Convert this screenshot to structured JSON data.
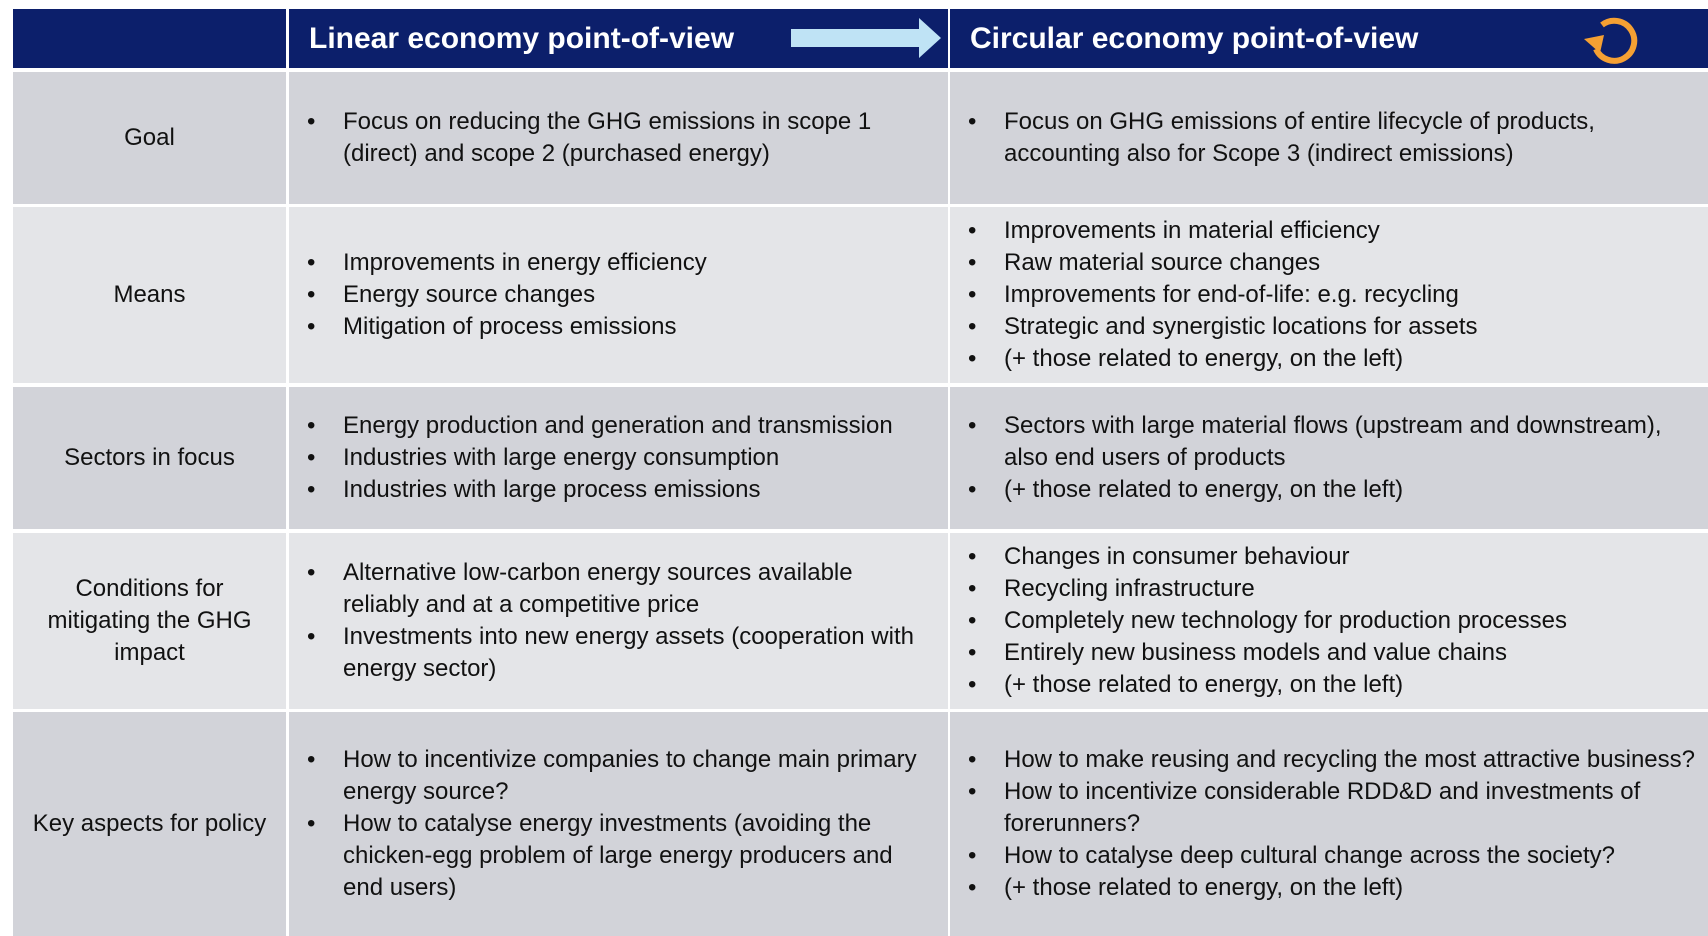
{
  "header": {
    "columns": [
      "Linear economy point-of-view",
      "Circular economy point-of-view"
    ]
  },
  "rows": [
    {
      "label": "Goal",
      "linear": [
        "Focus on reducing the GHG emissions in scope 1 (direct) and scope 2 (purchased energy)"
      ],
      "circular": [
        "Focus on GHG emissions of entire lifecycle of products, accounting also for Scope 3 (indirect emissions)"
      ]
    },
    {
      "label": "Means",
      "linear": [
        "Improvements in energy efficiency",
        "Energy source changes",
        "Mitigation of process emissions"
      ],
      "circular": [
        "Improvements in material efficiency",
        "Raw material source changes",
        "Improvements for end-of-life: e.g. recycling",
        "Strategic and synergistic locations for assets",
        "(+ those related to energy, on the left)"
      ]
    },
    {
      "label": "Sectors in focus",
      "linear": [
        "Energy production and generation and transmission",
        "Industries with large energy consumption",
        "Industries with large process emissions"
      ],
      "circular": [
        "Sectors with large material flows (upstream and downstream), also end users of products",
        "(+ those related to energy, on the left)"
      ]
    },
    {
      "label": "Conditions for mitigating the GHG impact",
      "linear": [
        "Alternative low-carbon energy sources available reliably and at a competitive price",
        "Investments into new energy assets (cooperation with energy sector)"
      ],
      "circular": [
        "Changes in consumer behaviour",
        "Recycling infrastructure",
        "Completely new technology for production processes",
        "Entirely new business models and value chains",
        "(+ those related to energy, on the left)"
      ]
    },
    {
      "label": "Key aspects for policy",
      "linear": [
        "How to incentivize companies to change main primary energy source?",
        "How to catalyse energy investments (avoiding the chicken-egg problem of large energy producers and end users)"
      ],
      "circular": [
        "How to make reusing and recycling the most attractive business?",
        "How to incentivize considerable RDD&D and investments of forerunners?",
        "How to catalyse deep cultural change across the society?",
        "(+ those related to energy, on the left)"
      ]
    }
  ]
}
